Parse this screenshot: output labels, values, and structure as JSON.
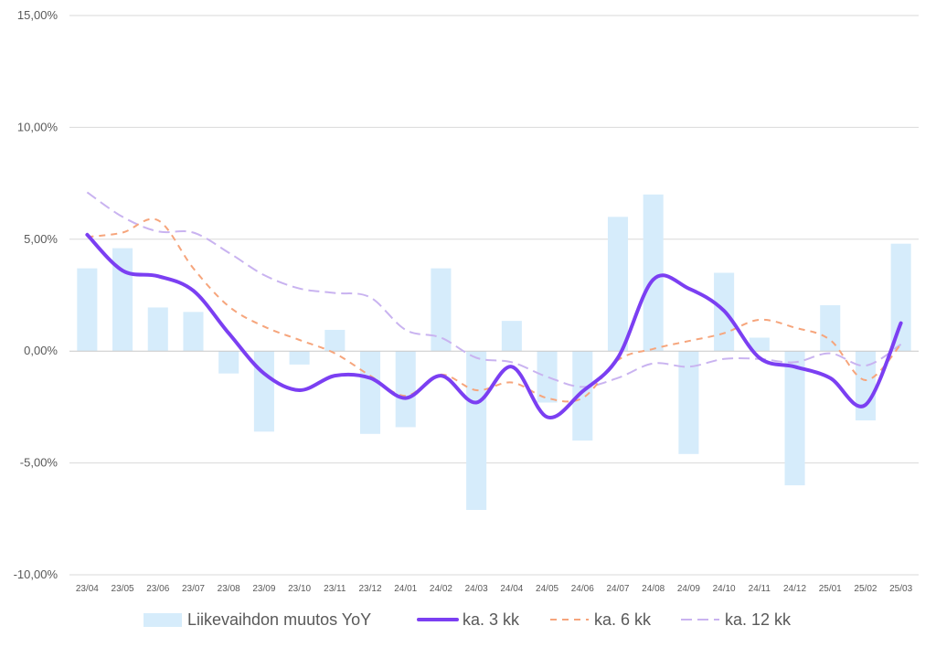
{
  "chart_data": {
    "type": "bar",
    "categories": [
      "23/04",
      "23/05",
      "23/06",
      "23/07",
      "23/08",
      "23/09",
      "23/10",
      "23/11",
      "23/12",
      "24/01",
      "24/02",
      "24/03",
      "24/04",
      "24/05",
      "24/06",
      "24/07",
      "24/08",
      "24/09",
      "24/10",
      "24/11",
      "24/12",
      "25/01",
      "25/02",
      "25/03"
    ],
    "ylim": [
      -10,
      15
    ],
    "yticks": [
      {
        "value": -10,
        "label": "-10,00%"
      },
      {
        "value": -5,
        "label": "-5,00%"
      },
      {
        "value": 0,
        "label": "0,00%"
      },
      {
        "value": 5,
        "label": "5,00%"
      },
      {
        "value": 10,
        "label": "10,00%"
      },
      {
        "value": 15,
        "label": "15,00%"
      }
    ],
    "grid": true,
    "legend_position": "bottom",
    "series": [
      {
        "name": "Liikevaihdon muutos YoY",
        "type": "bar",
        "color": "#d6ecfb",
        "values": [
          3.7,
          4.6,
          1.95,
          1.75,
          -1.0,
          -3.6,
          -0.6,
          0.95,
          -3.7,
          -3.4,
          3.7,
          -7.1,
          1.35,
          -2.3,
          -4.0,
          6.0,
          7.0,
          -4.6,
          3.5,
          0.6,
          -6.0,
          2.05,
          -3.1,
          4.8
        ]
      },
      {
        "name": "ka. 3 kk",
        "type": "line",
        "style": "solid",
        "color": "#7b3ff2",
        "values": [
          5.2,
          3.6,
          3.35,
          2.7,
          0.8,
          -1.0,
          -1.75,
          -1.1,
          -1.2,
          -2.1,
          -1.1,
          -2.3,
          -0.7,
          -2.95,
          -1.8,
          -0.3,
          3.2,
          2.8,
          1.8,
          -0.3,
          -0.7,
          -1.2,
          -2.4,
          1.25
        ]
      },
      {
        "name": "ka. 6 kk",
        "type": "line",
        "style": "dashed",
        "color": "#f6a57c",
        "values": [
          5.1,
          5.3,
          5.85,
          3.7,
          2.0,
          1.1,
          0.5,
          -0.1,
          -1.1,
          -2.0,
          -1.05,
          -1.75,
          -1.4,
          -2.1,
          -2.1,
          -0.4,
          0.1,
          0.45,
          0.8,
          1.4,
          1.05,
          0.5,
          -1.3,
          0.3
        ]
      },
      {
        "name": "ka. 12 kk",
        "type": "line",
        "style": "dashed",
        "color": "#c9b3f0",
        "values": [
          7.1,
          6.0,
          5.35,
          5.3,
          4.4,
          3.4,
          2.8,
          2.6,
          2.4,
          0.95,
          0.6,
          -0.3,
          -0.5,
          -1.15,
          -1.6,
          -1.2,
          -0.55,
          -0.7,
          -0.35,
          -0.35,
          -0.5,
          -0.1,
          -0.65,
          0.3
        ]
      }
    ]
  }
}
